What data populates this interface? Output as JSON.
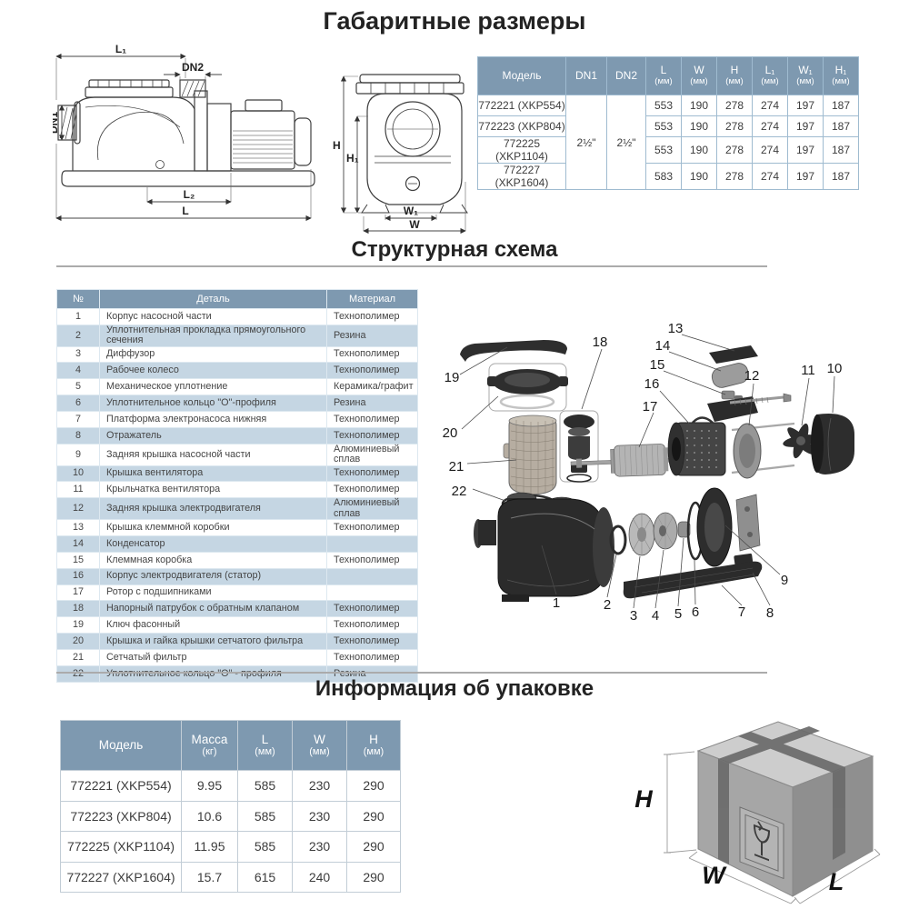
{
  "sections": {
    "dimensions_title": "Габаритные размеры",
    "structure_title": "Структурная схема",
    "packaging_title": "Информация об упаковке"
  },
  "colors": {
    "table_header_bg": "#7e99b0",
    "row_stripe": "#c5d6e3",
    "table_border": "#9fbbd0",
    "title_text": "#232323"
  },
  "dim_table": {
    "col_model": "Модель",
    "col_dn1": "DN1",
    "col_dn2": "DN2",
    "cols": [
      {
        "label": "L",
        "unit": "(мм)"
      },
      {
        "label": "W",
        "unit": "(мм)"
      },
      {
        "label": "H",
        "unit": "(мм)"
      },
      {
        "label": "L₁",
        "unit": "(мм)"
      },
      {
        "label": "W₁",
        "unit": "(мм)"
      },
      {
        "label": "H₁",
        "unit": "(мм)"
      }
    ],
    "dn1_value": "2½\"",
    "dn2_value": "2½\"",
    "rows": [
      {
        "model": "772221 (XKP554)",
        "l": "553",
        "w": "190",
        "h": "278",
        "l1": "274",
        "w1": "197",
        "h1": "187"
      },
      {
        "model": "772223 (XKP804)",
        "l": "553",
        "w": "190",
        "h": "278",
        "l1": "274",
        "w1": "197",
        "h1": "187"
      },
      {
        "model": "772225 (XKP1104)",
        "l": "553",
        "w": "190",
        "h": "278",
        "l1": "274",
        "w1": "197",
        "h1": "187"
      },
      {
        "model": "772227 (XKP1604)",
        "l": "583",
        "w": "190",
        "h": "278",
        "l1": "274",
        "w1": "197",
        "h1": "187"
      }
    ]
  },
  "parts_table": {
    "headers": [
      "№",
      "Деталь",
      "Материал"
    ],
    "rows": [
      {
        "num": "1",
        "name": "Корпус насосной части",
        "material": "Технополимер"
      },
      {
        "num": "2",
        "name": "Уплотнительная прокладка прямоугольного сечения",
        "material": "Резина"
      },
      {
        "num": "3",
        "name": "Диффузор",
        "material": "Технополимер"
      },
      {
        "num": "4",
        "name": "Рабочее колесо",
        "material": "Технополимер"
      },
      {
        "num": "5",
        "name": "Механическое уплотнение",
        "material": "Керамика/графит"
      },
      {
        "num": "6",
        "name": "Уплотнительное кольцо \"О\"-профиля",
        "material": "Резина"
      },
      {
        "num": "7",
        "name": "Платформа электронасоса нижняя",
        "material": "Технополимер"
      },
      {
        "num": "8",
        "name": "Отражатель",
        "material": "Технополимер"
      },
      {
        "num": "9",
        "name": "Задняя крышка насосной части",
        "material": "Алюминиевый сплав"
      },
      {
        "num": "10",
        "name": "Крышка вентилятора",
        "material": "Технополимер"
      },
      {
        "num": "11",
        "name": "Крыльчатка вентилятора",
        "material": "Технополимер"
      },
      {
        "num": "12",
        "name": "Задняя крышка электродвигателя",
        "material": "Алюминиевый сплав"
      },
      {
        "num": "13",
        "name": "Крышка клеммной коробки",
        "material": "Технополимер"
      },
      {
        "num": "14",
        "name": "Конденсатор",
        "material": ""
      },
      {
        "num": "15",
        "name": "Клеммная коробка",
        "material": "Технополимер"
      },
      {
        "num": "16",
        "name": "Корпус электродвигателя (статор)",
        "material": ""
      },
      {
        "num": "17",
        "name": "Ротор с подшипниками",
        "material": ""
      },
      {
        "num": "18",
        "name": "Напорный патрубок с обратным клапаном",
        "material": "Технополимер"
      },
      {
        "num": "19",
        "name": "Ключ фасонный",
        "material": "Технополимер"
      },
      {
        "num": "20",
        "name": "Крышка и гайка крышки сетчатого фильтра",
        "material": "Технополимер"
      },
      {
        "num": "21",
        "name": "Сетчатый фильтр",
        "material": "Технополимер"
      },
      {
        "num": "22",
        "name": "Уплотнительное кольцо \"О\" - профиля",
        "material": "Резина"
      }
    ]
  },
  "pack_table": {
    "col_model": "Модель",
    "cols": [
      {
        "label": "Масса",
        "unit": "(кг)"
      },
      {
        "label": "L",
        "unit": "(мм)"
      },
      {
        "label": "W",
        "unit": "(мм)"
      },
      {
        "label": "H",
        "unit": "(мм)"
      }
    ],
    "rows": [
      {
        "model": "772221 (XKP554)",
        "mass": "9.95",
        "l": "585",
        "w": "230",
        "h": "290"
      },
      {
        "model": "772223 (XKP804)",
        "mass": "10.6",
        "l": "585",
        "w": "230",
        "h": "290"
      },
      {
        "model": "772225 (XKP1104)",
        "mass": "11.95",
        "l": "585",
        "w": "230",
        "h": "290"
      },
      {
        "model": "772227 (XKP1604)",
        "mass": "15.7",
        "l": "615",
        "w": "240",
        "h": "290"
      }
    ]
  },
  "drawings": {
    "side_view": {
      "l1": "L₁",
      "dn2": "DN2",
      "dn1": "DN1",
      "l2": "L₂",
      "l": "L"
    },
    "front_view": {
      "h": "H",
      "h1": "H₁",
      "w1": "W₁",
      "w": "W"
    },
    "box": {
      "h": "H",
      "w": "W",
      "l": "L"
    },
    "exploded": {
      "callouts": [
        "1",
        "2",
        "3",
        "4",
        "5",
        "6",
        "7",
        "8",
        "9",
        "10",
        "11",
        "12",
        "13",
        "14",
        "15",
        "16",
        "17",
        "18",
        "19",
        "20",
        "21",
        "22"
      ]
    }
  }
}
